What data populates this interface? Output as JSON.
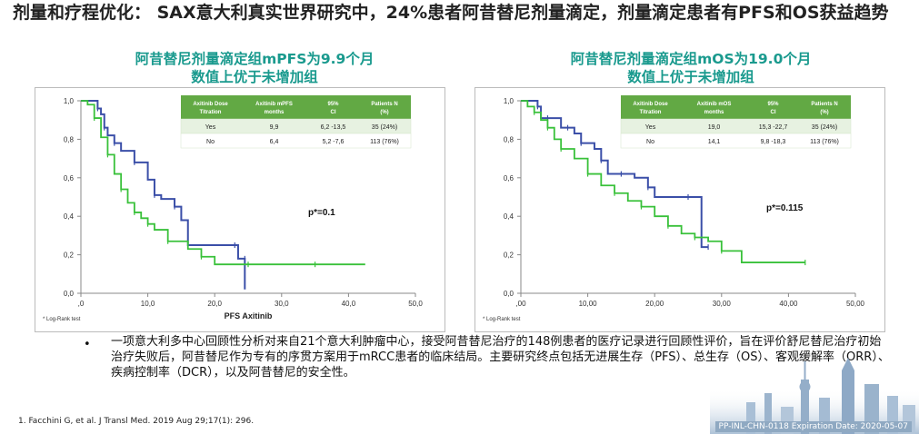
{
  "slide": {
    "title": "剂量和疗程优化： SAX意大利真实世界研究中，24%患者阿昔替尼剂量滴定，剂量滴定患者有PFS和OS获益趋势",
    "left_subtitle_1": "阿昔替尼剂量滴定组mPFS为9.9个月",
    "left_subtitle_2": "数值上优于未增加组",
    "right_subtitle_1": "阿昔替尼剂量滴定组mOS为19.0个月",
    "right_subtitle_2": "数值上优于未增加组",
    "bullet": "•",
    "paragraph": "一项意大利多中心回顾性分析对来自21个意大利肿瘤中心，接受阿昔替尼治疗的148例患者的医疗记录进行回顾性评价，旨在评价舒尼替尼治疗初始治疗失败后，阿昔替尼作为专有的序贯方案用于mRCC患者的临床结局。主要研究终点包括无进展生存（PFS）、总生存（OS）、客观缓解率（ORR）、疾病控制率（DCR），以及阿昔替尼的安全性。",
    "reference": "1.     Facchini G, et al. J Transl Med. 2019 Aug 29;17(1): 296.",
    "expiry": "PP-INL-CHN-0118 Expiration Date: 2020-05-07",
    "colors": {
      "accent": "#1a9a8e",
      "table_header": "#62a944",
      "series_yes": "#3b4fa8",
      "series_no": "#39c13a"
    }
  },
  "chart_data": [
    {
      "type": "line",
      "xlabel": "PFS Axitinib",
      "ylabel": "",
      "x_tick_labels": [
        ",0",
        "10,0",
        "20,0",
        "30,0",
        "40,0",
        "50,0"
      ],
      "y_tick_labels": [
        "0,0",
        "0,2",
        "0,4",
        "0,6",
        "0,8",
        "1,0"
      ],
      "xlim": [
        0,
        50
      ],
      "ylim": [
        0,
        1
      ],
      "footnote": "* Log-Rank test",
      "annotation": "p*=0.1",
      "table": {
        "headers": [
          "Axitinib Dose Titration",
          "Axitinib mPFS months",
          "95% CI",
          "Patients N (%)"
        ],
        "rows": [
          [
            "Yes",
            "9,9",
            "6,2 -13,5",
            "35 (24%)"
          ],
          [
            "No",
            "6,4",
            "5,2 -7,6",
            "113 (76%)"
          ]
        ]
      },
      "series": [
        {
          "x": [
            0,
            1.5,
            2.5,
            3,
            3.5,
            4,
            5,
            6,
            8,
            10,
            11,
            12,
            14,
            15,
            16,
            20,
            23,
            23.5,
            24.5,
            24.5
          ],
          "y": [
            1.0,
            1.0,
            0.96,
            0.93,
            0.86,
            0.82,
            0.78,
            0.74,
            0.68,
            0.59,
            0.51,
            0.49,
            0.45,
            0.38,
            0.25,
            0.25,
            0.25,
            0.18,
            0.18,
            0.02
          ]
        },
        {
          "x": [
            0,
            1,
            2,
            3,
            4,
            5,
            6,
            7,
            8,
            9,
            10,
            11,
            13,
            16,
            18,
            20,
            25,
            30,
            35,
            42.5
          ],
          "y": [
            1.0,
            0.98,
            0.91,
            0.81,
            0.72,
            0.62,
            0.54,
            0.47,
            0.42,
            0.39,
            0.36,
            0.33,
            0.27,
            0.23,
            0.19,
            0.15,
            0.15,
            0.15,
            0.15,
            0.15
          ]
        }
      ]
    },
    {
      "type": "line",
      "xlabel": "",
      "ylabel": "",
      "x_tick_labels": [
        ",00",
        "10,00",
        "20,00",
        "30,00",
        "40,00",
        "50,00"
      ],
      "y_tick_labels": [
        "0,0",
        "0,2",
        "0,4",
        "0,6",
        "0,8",
        "1,0"
      ],
      "xlim": [
        0,
        50
      ],
      "ylim": [
        0,
        1
      ],
      "footnote": "* Log-Rank test",
      "annotation": "p*=0.115",
      "table": {
        "headers": [
          "Axitinib Dose Titration",
          "Axitinib mOS months",
          "95% CI",
          "Patients N (%)"
        ],
        "rows": [
          [
            "Yes",
            "19,0",
            "15,3 -22,7",
            "35 (24%)"
          ],
          [
            "No",
            "14,1",
            "9,8 -18,3",
            "113 (76%)"
          ]
        ]
      },
      "series": [
        {
          "x": [
            0,
            2,
            2.5,
            3,
            4,
            6,
            7,
            8,
            9,
            11,
            12,
            13,
            15,
            17,
            19,
            20,
            25,
            27,
            28
          ],
          "y": [
            1.0,
            1.0,
            0.97,
            0.91,
            0.91,
            0.86,
            0.86,
            0.83,
            0.78,
            0.75,
            0.69,
            0.62,
            0.62,
            0.6,
            0.55,
            0.5,
            0.5,
            0.24,
            0.24
          ]
        },
        {
          "x": [
            0,
            1,
            2,
            3,
            4,
            5,
            6,
            8,
            10,
            12,
            14,
            16,
            18,
            20,
            22,
            24,
            26,
            28,
            30,
            33,
            42.5
          ],
          "y": [
            1.0,
            0.97,
            0.94,
            0.9,
            0.86,
            0.8,
            0.75,
            0.7,
            0.62,
            0.56,
            0.52,
            0.48,
            0.45,
            0.4,
            0.35,
            0.31,
            0.29,
            0.27,
            0.22,
            0.16,
            0.16
          ]
        }
      ]
    }
  ]
}
